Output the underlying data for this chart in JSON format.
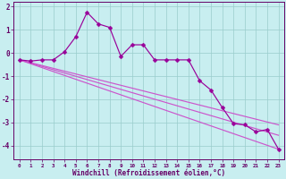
{
  "xlabel": "Windchill (Refroidissement éolien,°C)",
  "x_data": [
    0,
    1,
    2,
    3,
    4,
    5,
    6,
    7,
    8,
    9,
    10,
    11,
    12,
    13,
    14,
    15,
    16,
    17,
    18,
    19,
    20,
    21,
    22,
    23
  ],
  "y_main": [
    -0.3,
    -0.35,
    -0.3,
    -0.3,
    0.05,
    0.7,
    1.75,
    1.25,
    1.1,
    -0.15,
    0.35,
    0.35,
    -0.3,
    -0.3,
    -0.3,
    -0.3,
    -1.2,
    -1.6,
    -2.35,
    -3.05,
    -3.1,
    -3.4,
    -3.3,
    -4.15
  ],
  "line1_x": [
    0,
    23
  ],
  "line1_y": [
    -0.3,
    -3.1
  ],
  "line2_x": [
    0,
    23
  ],
  "line2_y": [
    -0.3,
    -3.55
  ],
  "line3_x": [
    0,
    23
  ],
  "line3_y": [
    -0.3,
    -4.15
  ],
  "color_main": "#990099",
  "color_lines": "#cc55cc",
  "bg_color": "#c8eef0",
  "grid_color": "#99cccc",
  "axis_color": "#660066",
  "label_color": "#660066",
  "ylim": [
    -4.6,
    2.2
  ],
  "yticks": [
    -4,
    -3,
    -2,
    -1,
    0,
    1,
    2
  ],
  "xlim": [
    -0.5,
    23.5
  ],
  "xtick_fontsize": 4.2,
  "ytick_fontsize": 5.5,
  "xlabel_fontsize": 5.5,
  "linewidth_main": 0.85,
  "linewidth_trend": 0.85,
  "marker_size": 2.5
}
